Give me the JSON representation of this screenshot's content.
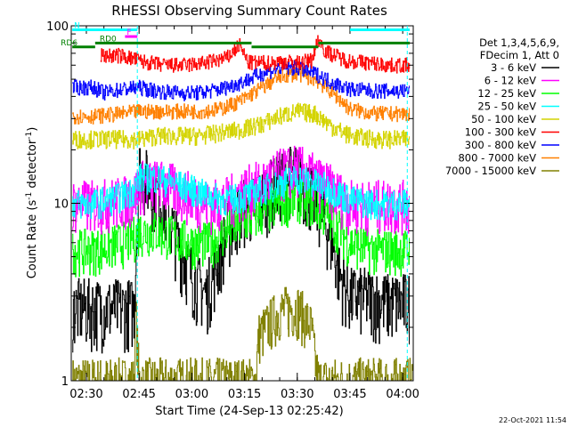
{
  "chart_data": {
    "type": "line",
    "title": "RHESSI Observing Summary Count Rates",
    "xlabel": "Start Time (24-Sep-13 02:25:42)",
    "ylabel": "Count Rate (s",
    "ylabel_sup": "-1",
    "ylabel_tail": " detector",
    "ylabel_tail_sup": "-1",
    "ylabel_close": ")",
    "yscale": "log",
    "ylim": [
      1,
      100
    ],
    "y_ticks": [
      {
        "value": 1,
        "label": "1"
      },
      {
        "value": 10,
        "label": "10"
      },
      {
        "value": 100,
        "label": "100"
      }
    ],
    "xlim_min": [
      145.7,
      243
    ],
    "x_ticks": [
      {
        "value": 150,
        "label": "02:30"
      },
      {
        "value": 165,
        "label": "02:45"
      },
      {
        "value": 180,
        "label": "03:00"
      },
      {
        "value": 195,
        "label": "03:15"
      },
      {
        "value": 210,
        "label": "03:30"
      },
      {
        "value": 225,
        "label": "03:45"
      },
      {
        "value": 240,
        "label": "04:00"
      }
    ],
    "legend": {
      "position": "right",
      "header": [
        "Det 1,3,4,5,6,9,",
        "FDecim 1, Att 0"
      ],
      "entries": [
        {
          "label": "3 - 6 keV",
          "color": "#000000"
        },
        {
          "label": "6 - 12 keV",
          "color": "#ff00ff"
        },
        {
          "label": "12 - 25 keV",
          "color": "#00ff00"
        },
        {
          "label": "25 - 50 keV",
          "color": "#00ffff"
        },
        {
          "label": "50 - 100 keV",
          "color": "#d4d400"
        },
        {
          "label": "100 - 300 keV",
          "color": "#ff0000"
        },
        {
          "label": "300 - 800 keV",
          "color": "#0000ff"
        },
        {
          "label": "800 - 7000 keV",
          "color": "#ff8000"
        },
        {
          "label": "7000 - 15000 keV",
          "color": "#808000"
        }
      ]
    },
    "series": [
      {
        "name": "3 - 6 keV",
        "color": "#000000",
        "x": [
          146,
          152,
          160,
          163.5,
          165,
          168,
          172,
          176,
          180,
          184,
          186,
          190,
          194,
          198,
          202,
          206,
          209,
          212,
          216,
          220,
          222,
          225,
          230,
          235,
          242
        ],
        "y": [
          2.6,
          2.6,
          2.6,
          2.6,
          16,
          13,
          10,
          6,
          4,
          3.1,
          4,
          7,
          9.5,
          10,
          12,
          14,
          15,
          13,
          10,
          6,
          4,
          3,
          3,
          2.8,
          2.8
        ]
      },
      {
        "name": "6 - 12 keV",
        "color": "#ff00ff",
        "x": [
          146,
          152,
          160,
          163.5,
          165,
          168,
          172,
          176,
          180,
          185,
          190,
          195,
          200,
          205,
          210,
          215,
          220,
          225,
          232,
          242
        ],
        "y": [
          10,
          10,
          10.5,
          11,
          13,
          13,
          13,
          12,
          11,
          10,
          10.5,
          12,
          13,
          15,
          16,
          14,
          12,
          10,
          10,
          10
        ]
      },
      {
        "name": "12 - 25 keV",
        "color": "#00ff00",
        "x": [
          146,
          152,
          160,
          163.5,
          165,
          170,
          175,
          180,
          185,
          190,
          195,
          200,
          205,
          210,
          215,
          220,
          225,
          232,
          242
        ],
        "y": [
          5.5,
          5.5,
          6,
          6.5,
          7,
          7,
          6.5,
          6,
          6,
          7,
          8,
          9,
          10,
          11,
          10,
          8,
          6,
          5.5,
          5.5
        ]
      },
      {
        "name": "25 - 50 keV",
        "color": "#00ffff",
        "x": [
          146,
          152,
          160,
          163.5,
          165,
          170,
          175,
          180,
          185,
          190,
          195,
          200,
          205,
          210,
          215,
          220,
          225,
          232,
          242
        ],
        "y": [
          10,
          10,
          11,
          12,
          14,
          14,
          13,
          12,
          11,
          10.5,
          11,
          12,
          13,
          14,
          13,
          12,
          10.5,
          10,
          10
        ]
      },
      {
        "name": "50 - 100 keV",
        "color": "#d4d400",
        "x": [
          146,
          152,
          160,
          165,
          170,
          176,
          182,
          188,
          194,
          200,
          205,
          210,
          215,
          220,
          225,
          232,
          242
        ],
        "y": [
          23,
          23,
          23,
          23,
          24,
          24,
          24,
          25,
          26,
          28,
          31,
          33,
          32,
          27,
          24,
          23,
          23
        ]
      },
      {
        "name": "100 - 300 keV",
        "color": "#ff0000",
        "x": [
          154,
          160,
          166,
          172,
          178,
          184,
          190,
          193.5,
          196,
          202,
          206,
          210,
          214,
          216,
          218,
          224,
          230,
          236,
          242
        ],
        "y": [
          68,
          68,
          63,
          60,
          60,
          62,
          66,
          78,
          62,
          62,
          63,
          62,
          64,
          85,
          72,
          64,
          62,
          60,
          60
        ]
      },
      {
        "name": "300 - 800 keV",
        "color": "#0000ff",
        "x": [
          146,
          152,
          155,
          160,
          165,
          170,
          176,
          182,
          188,
          194,
          200,
          205,
          210,
          215,
          220,
          225,
          232,
          242
        ],
        "y": [
          45,
          45,
          42,
          44,
          45,
          43,
          42,
          42,
          44,
          48,
          54,
          58,
          58,
          54,
          48,
          44,
          43,
          43
        ]
      },
      {
        "name": "800 - 7000 keV",
        "color": "#ff8000",
        "x": [
          146,
          152,
          160,
          165,
          170,
          176,
          182,
          188,
          194,
          200,
          205,
          210,
          215,
          220,
          225,
          232,
          242
        ],
        "y": [
          31,
          31,
          32,
          33,
          33,
          33,
          33,
          34,
          38,
          45,
          52,
          54,
          50,
          42,
          34,
          32,
          32
        ]
      },
      {
        "name": "7000 - 15000 keV",
        "color": "#808000",
        "x": [
          146,
          163.5,
          164,
          164.5,
          165,
          190,
          198,
          199,
          205,
          210,
          214,
          215,
          216,
          243
        ],
        "y": [
          1,
          1,
          2.5,
          1.5,
          1,
          1,
          1,
          1.8,
          2.5,
          2.6,
          2,
          1.3,
          1,
          1
        ]
      }
    ],
    "state_bars": [
      {
        "label": "N",
        "color": "#00ffff",
        "x_start": 146,
        "x_end": 164.5,
        "y": 95
      },
      {
        "label": "",
        "color": "#00ffff",
        "x_start": 225,
        "x_end": 242,
        "y": 95
      },
      {
        "label": "F",
        "color": "#ff00ff",
        "x_start": 161,
        "x_end": 164.5,
        "y": 87
      },
      {
        "label": "RD0",
        "color": "#008000",
        "x_start": 152.5,
        "x_end": 197,
        "y": 80
      },
      {
        "label": "RD6",
        "color": "#008000",
        "x_start": 146,
        "x_end": 152.5,
        "y": 76
      },
      {
        "label": "",
        "color": "#008000",
        "x_start": 197,
        "x_end": 216,
        "y": 76
      },
      {
        "label": "",
        "color": "#008000",
        "x_start": 216,
        "x_end": 242,
        "y": 80
      }
    ],
    "vlines": [
      {
        "x": 164.5,
        "color": "#00ffff"
      },
      {
        "x": 241.3,
        "color": "#00ffff"
      }
    ]
  },
  "footer": {
    "timestamp": "22-Oct-2021 11:54"
  }
}
